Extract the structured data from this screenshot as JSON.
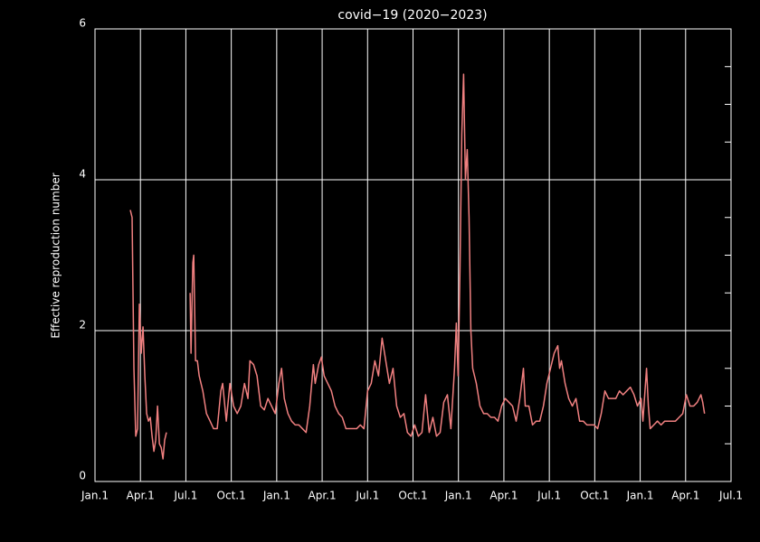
{
  "chart_data": {
    "type": "line",
    "title": "covid−19 (2020−2023)",
    "y_label": "Effective reproduction number",
    "color": "#f08080",
    "grid": true,
    "xlim": [
      0,
      42
    ],
    "xticks": [
      {
        "value": 0,
        "label": "Jan.1"
      },
      {
        "value": 3,
        "label": "Apr.1"
      },
      {
        "value": 6,
        "label": "Jul.1"
      },
      {
        "value": 9,
        "label": "Oct.1"
      },
      {
        "value": 12,
        "label": "Jan.1"
      },
      {
        "value": 15,
        "label": "Apr.1"
      },
      {
        "value": 18,
        "label": "Jul.1"
      },
      {
        "value": 21,
        "label": "Oct.1"
      },
      {
        "value": 24,
        "label": "Jan.1"
      },
      {
        "value": 27,
        "label": "Apr.1"
      },
      {
        "value": 30,
        "label": "Jul.1"
      },
      {
        "value": 33,
        "label": "Oct.1"
      },
      {
        "value": 36,
        "label": "Jan.1"
      },
      {
        "value": 39,
        "label": "Apr.1"
      },
      {
        "value": 42,
        "label": "Jul.1"
      }
    ],
    "ylim": [
      0,
      6
    ],
    "yticks": [
      0,
      2,
      4,
      6
    ],
    "yminorticks": [
      0.5,
      1,
      1.5,
      2.5,
      3,
      3.5,
      4.5,
      5,
      5.5
    ],
    "x": [
      2.33,
      2.45,
      2.57,
      2.69,
      2.81,
      2.93,
      3.05,
      3.17,
      3.29,
      3.41,
      3.53,
      3.65,
      3.77,
      3.89,
      4.01,
      4.13,
      4.25,
      4.37,
      4.49,
      4.6,
      4.72,
      5.5,
      6.28,
      6.34,
      6.46,
      6.52,
      6.64,
      6.76,
      6.88,
      7.12,
      7.36,
      7.6,
      7.83,
      8.07,
      8.31,
      8.43,
      8.67,
      8.91,
      9.15,
      9.39,
      9.63,
      9.87,
      10.1,
      10.23,
      10.47,
      10.7,
      10.94,
      11.18,
      11.42,
      11.66,
      11.9,
      12.14,
      12.32,
      12.5,
      12.74,
      12.98,
      13.22,
      13.46,
      13.7,
      13.94,
      14.18,
      14.42,
      14.54,
      14.77,
      14.95,
      15.13,
      15.37,
      15.61,
      15.85,
      16.09,
      16.33,
      16.57,
      16.81,
      17.05,
      17.28,
      17.52,
      17.76,
      18.0,
      18.24,
      18.48,
      18.72,
      18.96,
      19.2,
      19.44,
      19.68,
      19.92,
      20.16,
      20.4,
      20.63,
      20.87,
      21.11,
      21.35,
      21.59,
      21.83,
      22.07,
      22.31,
      22.55,
      22.79,
      23.03,
      23.27,
      23.5,
      23.74,
      23.86,
      23.98,
      24.1,
      24.22,
      24.34,
      24.46,
      24.58,
      24.7,
      24.82,
      24.94,
      25.18,
      25.42,
      25.66,
      25.9,
      26.14,
      26.38,
      26.61,
      26.85,
      27.09,
      27.33,
      27.57,
      27.81,
      28.05,
      28.29,
      28.41,
      28.65,
      28.89,
      29.13,
      29.37,
      29.61,
      29.84,
      30.08,
      30.32,
      30.56,
      30.68,
      30.8,
      31.04,
      31.28,
      31.52,
      31.76,
      32.0,
      32.24,
      32.48,
      32.72,
      32.96,
      33.19,
      33.43,
      33.67,
      33.91,
      34.15,
      34.39,
      34.63,
      34.87,
      35.11,
      35.35,
      35.59,
      35.82,
      36.06,
      36.18,
      36.42,
      36.54,
      36.66,
      36.9,
      37.14,
      37.38,
      37.62,
      37.86,
      38.1,
      38.33,
      38.57,
      38.81,
      39.05,
      39.29,
      39.53,
      39.77,
      40.01,
      40.13,
      40.25
    ],
    "values": [
      3.6,
      3.5,
      1.5,
      0.6,
      0.7,
      2.35,
      1.7,
      2.05,
      1.4,
      0.9,
      0.8,
      0.85,
      0.6,
      0.4,
      0.55,
      1.0,
      0.5,
      0.45,
      0.3,
      0.55,
      0.65,
      null,
      2.5,
      1.7,
      2.9,
      3.0,
      1.6,
      1.6,
      1.4,
      1.2,
      0.9,
      0.8,
      0.7,
      0.7,
      1.2,
      1.3,
      0.8,
      1.3,
      1.0,
      0.9,
      1.0,
      1.3,
      1.1,
      1.6,
      1.55,
      1.4,
      1.0,
      0.95,
      1.1,
      1.0,
      0.9,
      1.3,
      1.5,
      1.1,
      0.9,
      0.8,
      0.75,
      0.75,
      0.7,
      0.65,
      1.0,
      1.55,
      1.3,
      1.55,
      1.65,
      1.4,
      1.3,
      1.2,
      1.0,
      0.9,
      0.85,
      0.7,
      0.7,
      0.7,
      0.7,
      0.75,
      0.7,
      1.2,
      1.3,
      1.6,
      1.4,
      1.9,
      1.6,
      1.3,
      1.5,
      1.0,
      0.85,
      0.9,
      0.65,
      0.6,
      0.75,
      0.6,
      0.65,
      1.15,
      0.65,
      0.85,
      0.6,
      0.65,
      1.05,
      1.15,
      0.7,
      1.5,
      2.1,
      1.4,
      2.8,
      4.6,
      5.4,
      4.0,
      4.4,
      3.5,
      2.0,
      1.5,
      1.3,
      1.0,
      0.9,
      0.9,
      0.85,
      0.85,
      0.8,
      1.0,
      1.1,
      1.05,
      1.0,
      0.8,
      1.1,
      1.5,
      1.0,
      1.0,
      0.75,
      0.8,
      0.8,
      1.0,
      1.3,
      1.5,
      1.7,
      1.8,
      1.5,
      1.6,
      1.3,
      1.1,
      1.0,
      1.1,
      0.8,
      0.8,
      0.75,
      0.75,
      0.75,
      0.7,
      0.9,
      1.2,
      1.1,
      1.1,
      1.1,
      1.2,
      1.15,
      1.2,
      1.25,
      1.15,
      1.0,
      1.1,
      0.8,
      1.5,
      1.0,
      0.7,
      0.75,
      0.8,
      0.75,
      0.8,
      0.8,
      0.8,
      0.8,
      0.85,
      0.9,
      1.15,
      1.0,
      1.0,
      1.05,
      1.15,
      1.05,
      0.9
    ]
  }
}
